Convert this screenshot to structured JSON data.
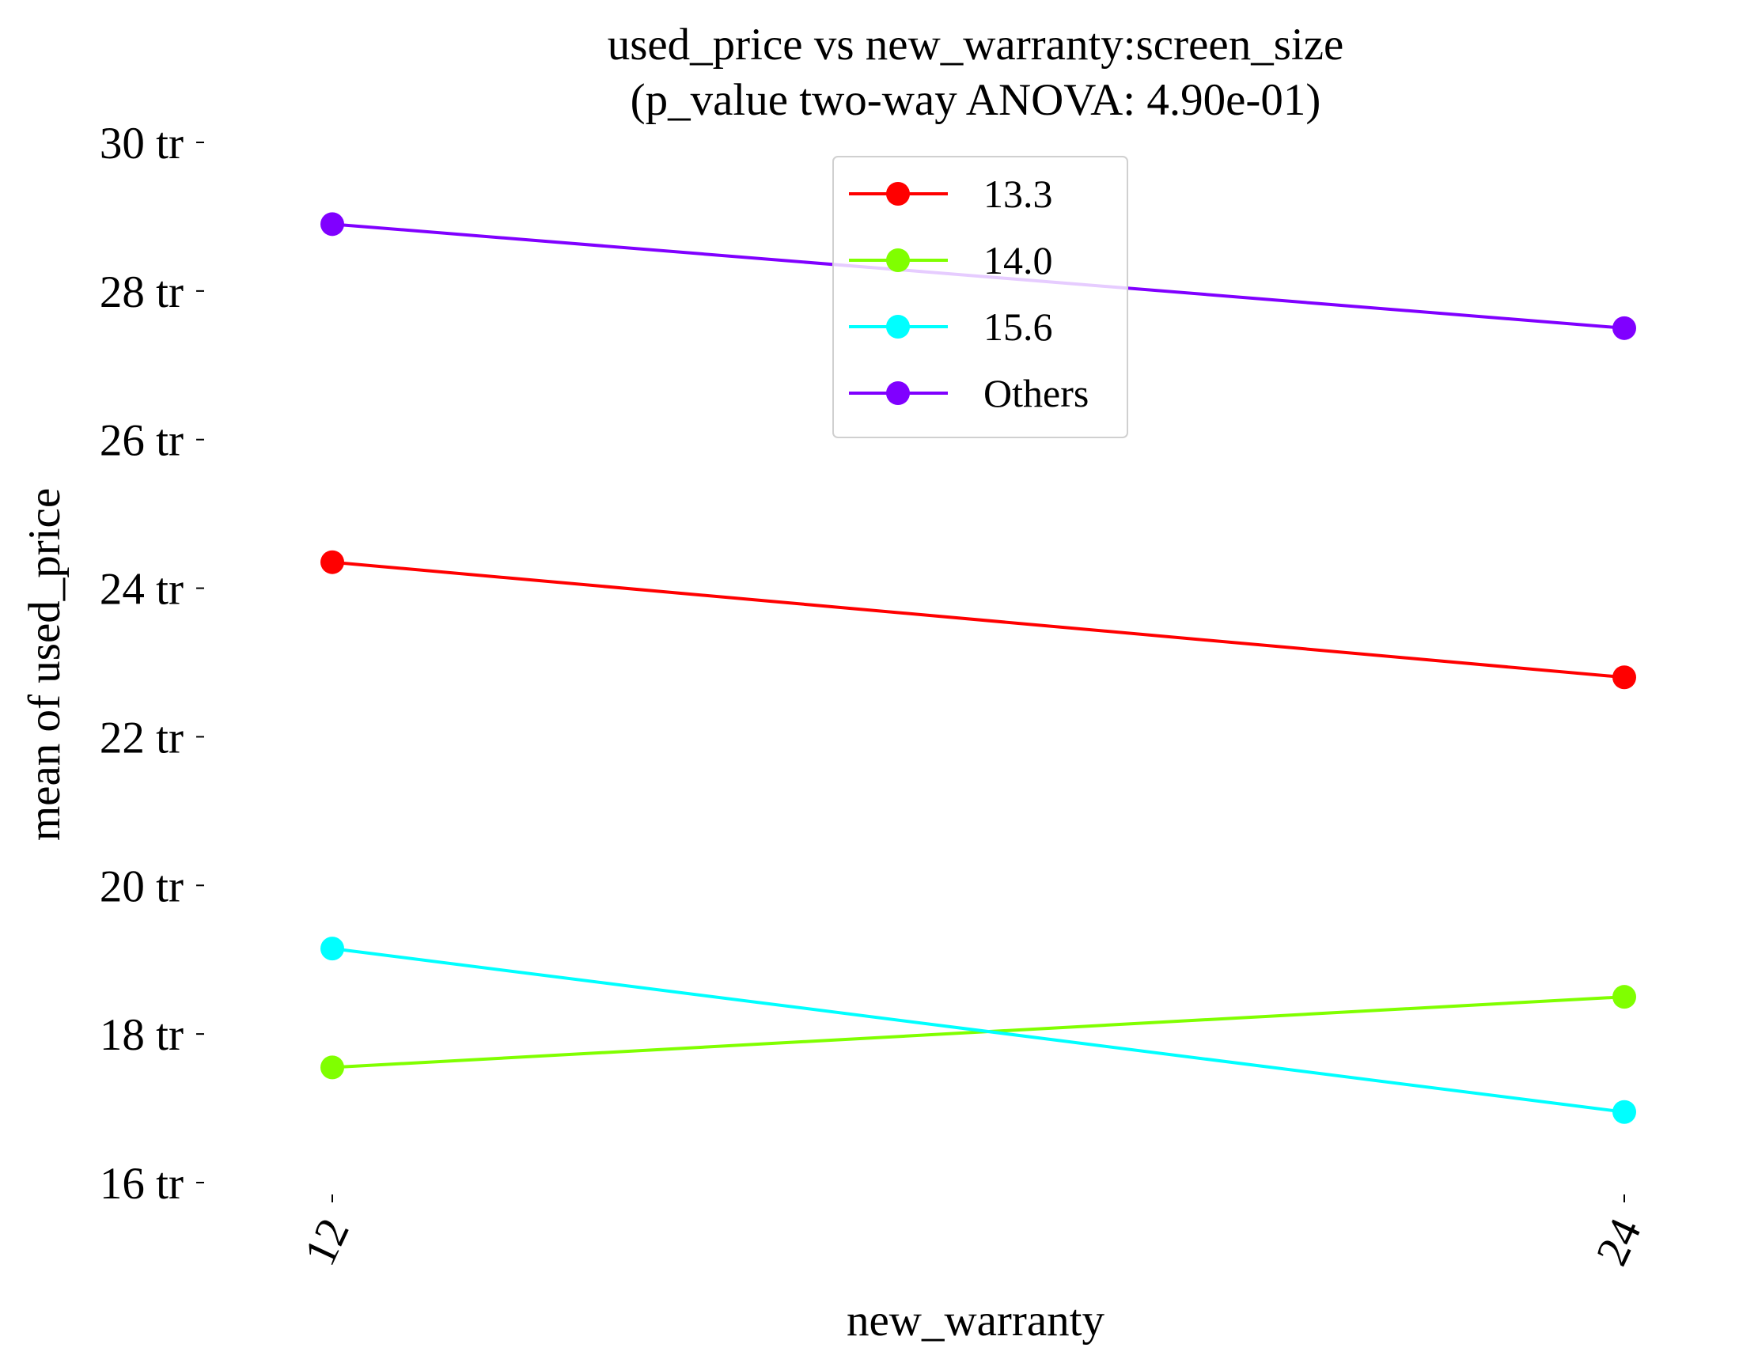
{
  "chart_data": {
    "type": "line",
    "title": "used_price vs new_warranty:screen_size",
    "subtitle": "(p_value two-way ANOVA: 4.90e-01)",
    "xlabel": "new_warranty",
    "ylabel": "mean of used_price",
    "categories": [
      "12",
      "24"
    ],
    "ylim": [
      16,
      30
    ],
    "yticks": [
      16,
      18,
      20,
      22,
      24,
      26,
      28,
      30
    ],
    "ytick_suffix": " tr",
    "grid": false,
    "legend_position": "top-center",
    "series": [
      {
        "name": "13.3",
        "color": "#ff0000",
        "values": [
          24.35,
          22.8
        ]
      },
      {
        "name": "14.0",
        "color": "#80ff00",
        "values": [
          17.55,
          18.5
        ]
      },
      {
        "name": "15.6",
        "color": "#00ffff",
        "values": [
          19.15,
          16.95
        ]
      },
      {
        "name": "Others",
        "color": "#8000ff",
        "values": [
          28.9,
          27.5
        ]
      }
    ]
  }
}
